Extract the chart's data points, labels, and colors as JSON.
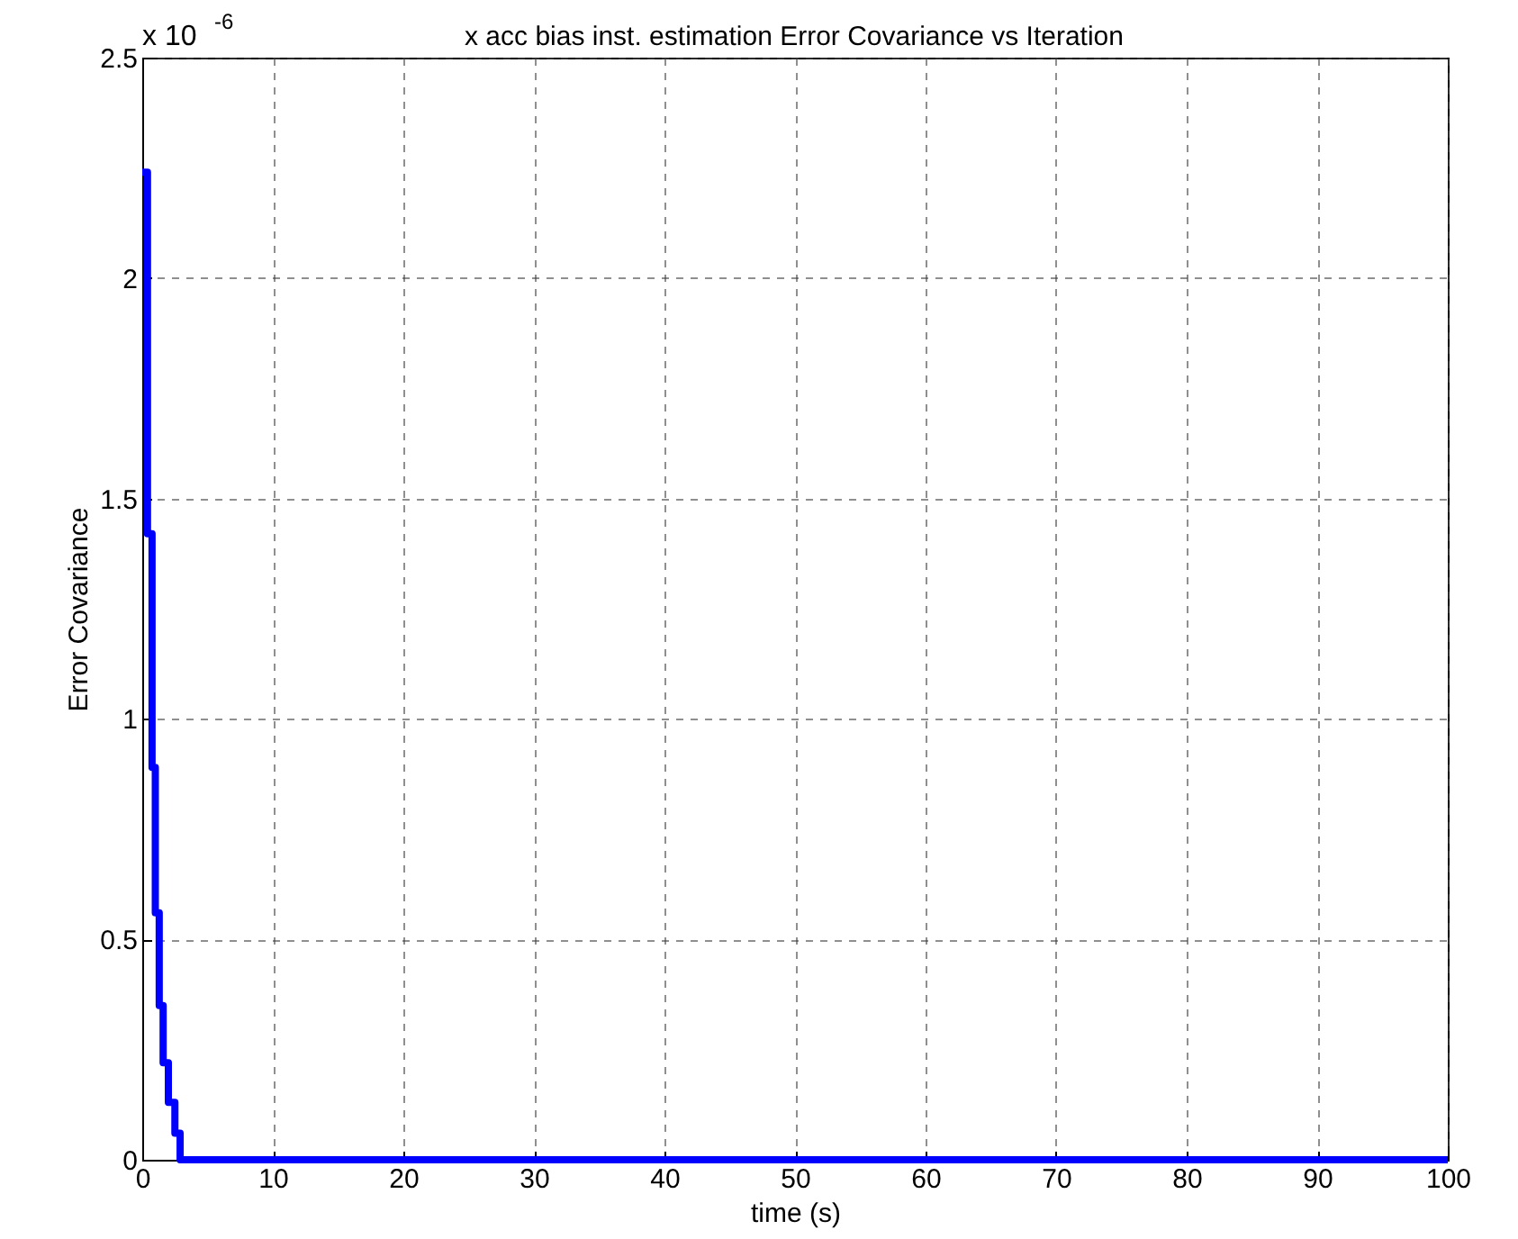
{
  "chart_data": {
    "type": "step",
    "title": "x acc bias inst. estimation Error Covariance vs Iteration",
    "xlabel": "time (s)",
    "ylabel": "Error Covariance",
    "annotations": [
      "x 10$^{-6}$"
    ],
    "x": [
      0,
      0.4,
      0.75,
      1.0,
      1.3,
      1.6,
      2.0,
      2.5,
      2.9,
      100
    ],
    "series": [
      {
        "color": "#0000ff",
        "values": [
          2.24,
          1.42,
          0.89,
          0.56,
          0.35,
          0.22,
          0.13,
          0.06,
          0,
          0
        ]
      }
    ],
    "xlim": [
      0,
      100
    ],
    "xticks": [
      0,
      10,
      20,
      30,
      40,
      50,
      60,
      70,
      80,
      90,
      100
    ],
    "ylim": [
      0,
      2.5
    ],
    "yticks": [
      0,
      0.5,
      1,
      1.5,
      2,
      2.5
    ],
    "grid": true,
    "line_style": "solid",
    "marker": "none",
    "legend": false
  }
}
